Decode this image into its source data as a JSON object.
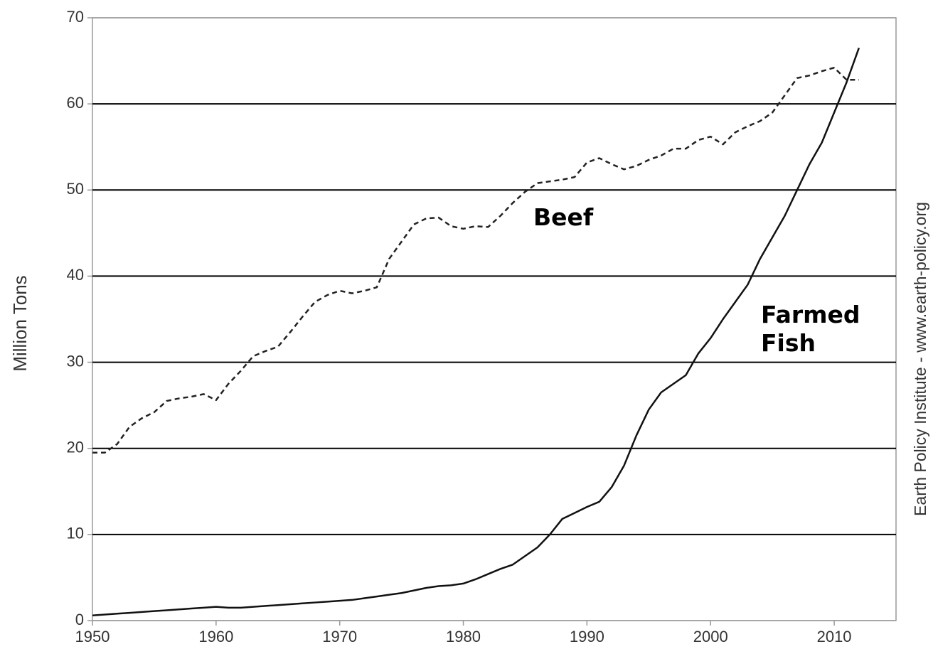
{
  "chart_data": {
    "type": "line",
    "ylabel": "Million Tons",
    "source": "Earth Policy Institute - www.earth-policy.org",
    "x": [
      1950,
      1951,
      1952,
      1953,
      1954,
      1955,
      1956,
      1957,
      1958,
      1959,
      1960,
      1961,
      1962,
      1963,
      1964,
      1965,
      1966,
      1967,
      1968,
      1969,
      1970,
      1971,
      1972,
      1973,
      1974,
      1975,
      1976,
      1977,
      1978,
      1979,
      1980,
      1981,
      1982,
      1983,
      1984,
      1985,
      1986,
      1987,
      1988,
      1989,
      1990,
      1991,
      1992,
      1993,
      1994,
      1995,
      1996,
      1997,
      1998,
      1999,
      2000,
      2001,
      2002,
      2003,
      2004,
      2005,
      2006,
      2007,
      2008,
      2009,
      2010,
      2011,
      2012
    ],
    "series": [
      {
        "name": "Beef",
        "color": "#222222",
        "dashed": true,
        "values": [
          19.5,
          19.5,
          20.5,
          22.5,
          23.5,
          24.2,
          25.5,
          25.8,
          26,
          26.3,
          25.6,
          27.5,
          29,
          30.7,
          31.3,
          31.8,
          33.5,
          35.3,
          37,
          37.8,
          38.3,
          38,
          38.3,
          38.7,
          42,
          44,
          46,
          46.7,
          46.8,
          45.8,
          45.5,
          45.8,
          45.7,
          47,
          48.5,
          49.8,
          50.8,
          51,
          51.2,
          51.5,
          53.2,
          53.7,
          53,
          52.4,
          52.8,
          53.5,
          54,
          54.8,
          54.8,
          55.8,
          56.2,
          55.3,
          56.7,
          57.4,
          58,
          59,
          61,
          63,
          63.3,
          63.8,
          64.2,
          62.8,
          62.8
        ]
      },
      {
        "name": "Farmed Fish",
        "color": "#111111",
        "dashed": false,
        "values": [
          0.6,
          0.7,
          0.8,
          0.9,
          1.0,
          1.1,
          1.2,
          1.3,
          1.4,
          1.5,
          1.6,
          1.5,
          1.5,
          1.6,
          1.7,
          1.8,
          1.9,
          2.0,
          2.1,
          2.2,
          2.3,
          2.4,
          2.6,
          2.8,
          3.0,
          3.2,
          3.5,
          3.8,
          4.0,
          4.1,
          4.3,
          4.8,
          5.4,
          6.0,
          6.5,
          7.5,
          8.5,
          10,
          11.8,
          12.5,
          13.2,
          13.8,
          15.5,
          18,
          21.5,
          24.5,
          26.5,
          27.5,
          28.5,
          31,
          32.8,
          35,
          37,
          39,
          42,
          44.5,
          47,
          50,
          53,
          55.5,
          59,
          62.5,
          66.5
        ]
      }
    ],
    "xlim": [
      1950,
      2015
    ],
    "xticks": [
      1950,
      1960,
      1970,
      1980,
      1990,
      2000,
      2010
    ],
    "ylim": [
      0,
      70
    ],
    "yticks": [
      0,
      10,
      20,
      30,
      40,
      50,
      60,
      70
    ],
    "grid": true
  }
}
